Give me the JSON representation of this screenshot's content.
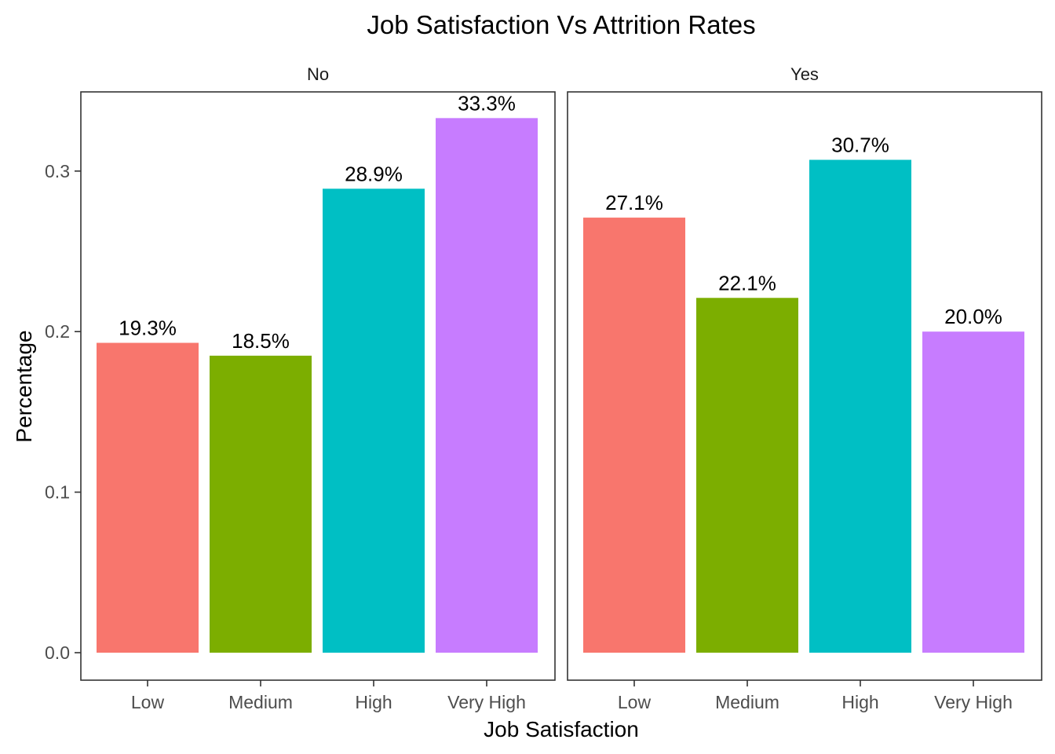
{
  "chart_data": {
    "type": "bar",
    "title": "Job Satisfaction Vs Attrition Rates",
    "xlabel": "Job Satisfaction",
    "ylabel": "Percentage",
    "categories": [
      "Low",
      "Medium",
      "High",
      "Very High"
    ],
    "ylim": [
      0,
      0.35
    ],
    "yticks": [
      "0.0",
      "0.1",
      "0.2",
      "0.3"
    ],
    "grid": false,
    "legend": "none",
    "colors": [
      "#F8766D",
      "#7CAE00",
      "#00BFC4",
      "#C77CFF"
    ],
    "panels": [
      {
        "name": "No",
        "values": [
          0.193,
          0.185,
          0.289,
          0.333
        ],
        "labels": [
          "19.3%",
          "18.5%",
          "28.9%",
          "33.3%"
        ]
      },
      {
        "name": "Yes",
        "values": [
          0.271,
          0.221,
          0.307,
          0.2
        ],
        "labels": [
          "27.1%",
          "22.1%",
          "30.7%",
          "20.0%"
        ]
      }
    ]
  }
}
